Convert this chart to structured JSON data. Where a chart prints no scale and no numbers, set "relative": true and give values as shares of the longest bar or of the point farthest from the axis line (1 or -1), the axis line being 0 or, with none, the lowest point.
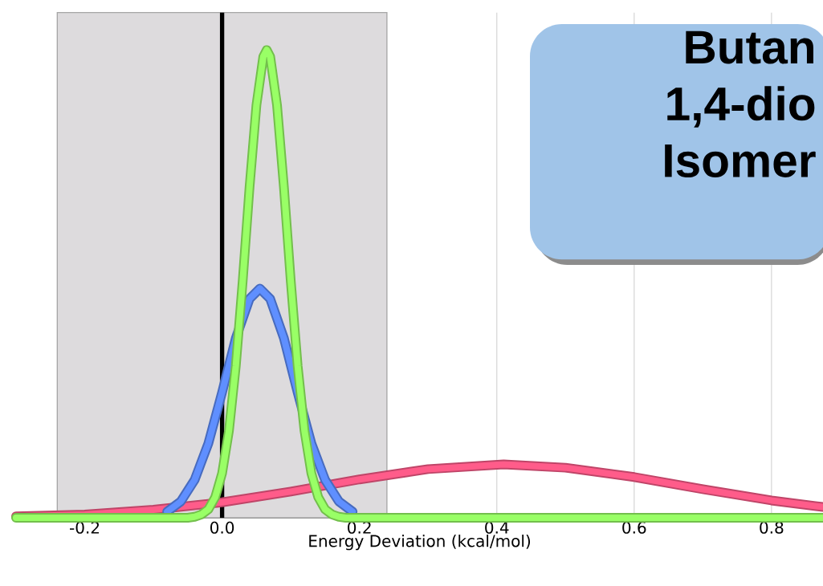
{
  "chart_data": {
    "type": "line",
    "xlabel": "Energy Deviation (kcal/mol)",
    "relative": true,
    "xlim": [
      -0.3,
      0.875
    ],
    "xticks": [
      -0.2,
      {
        "value": 0,
        "label": "0.0"
      },
      0.2,
      0.4,
      0.6,
      0.8
    ],
    "grid": "x",
    "marker": "none",
    "line_style": "solid",
    "ref_lines": [
      {
        "axis": "x",
        "value": 0,
        "color": "#000000"
      }
    ],
    "bands": [
      {
        "axis": "x",
        "from": -0.24,
        "to": 0.24,
        "color": "#dddbdd"
      }
    ],
    "annotations": [
      "Butan",
      "1,4-dio",
      "Isomer"
    ],
    "series": [
      {
        "color": "#ff5c8a",
        "x": [
          -0.3,
          -0.2,
          -0.1,
          0,
          0.1,
          0.2,
          0.3,
          0.41,
          0.5,
          0.6,
          0.7,
          0.8,
          0.875
        ],
        "values": [
          0.003,
          0.007,
          0.017,
          0.033,
          0.056,
          0.082,
          0.104,
          0.114,
          0.107,
          0.087,
          0.061,
          0.037,
          0.023
        ]
      },
      {
        "color": "#5f8fff",
        "x": [
          -0.08,
          -0.06,
          -0.04,
          -0.02,
          0,
          0.02,
          0.04,
          0.055,
          0.07,
          0.09,
          0.11,
          0.13,
          0.15,
          0.17,
          0.19
        ],
        "values": [
          0.013,
          0.035,
          0.081,
          0.159,
          0.268,
          0.384,
          0.468,
          0.49,
          0.468,
          0.384,
          0.268,
          0.159,
          0.081,
          0.035,
          0.013
        ]
      },
      {
        "color": "#99ff66",
        "x": [
          -0.3,
          -0.05,
          -0.04,
          -0.03,
          -0.02,
          -0.01,
          0,
          0.01,
          0.02,
          0.03,
          0.04,
          0.05,
          0.06,
          0.065,
          0.07,
          0.08,
          0.09,
          0.1,
          0.11,
          0.12,
          0.13,
          0.14,
          0.15,
          0.16,
          0.17,
          0.18,
          0.875
        ],
        "values": [
          0,
          0,
          0.002,
          0.007,
          0.018,
          0.044,
          0.095,
          0.186,
          0.325,
          0.506,
          0.707,
          0.882,
          0.986,
          1,
          0.986,
          0.882,
          0.707,
          0.506,
          0.325,
          0.186,
          0.095,
          0.044,
          0.018,
          0.007,
          0.002,
          0,
          0
        ]
      }
    ]
  }
}
